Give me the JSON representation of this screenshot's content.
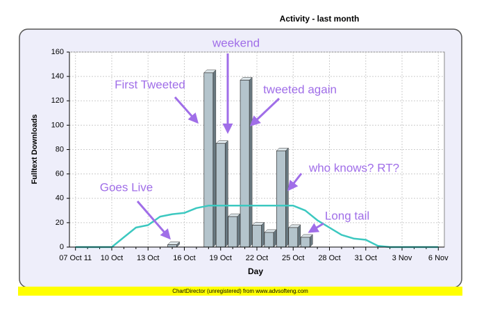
{
  "chart_data": {
    "type": "bar",
    "title": "Activity - last month",
    "ylabel": "Fulltext Downloads",
    "xlabel": "Day",
    "footer": "ChartDirector (unregistered) from www.advsofteng.com",
    "categories": [
      "07 Oct 11",
      null,
      null,
      "10 Oct",
      null,
      null,
      "13 Oct",
      null,
      null,
      "16 Oct",
      null,
      null,
      "19 Oct",
      null,
      null,
      "22 Oct",
      null,
      null,
      "25 Oct",
      null,
      null,
      "28 Oct",
      null,
      null,
      "31 Oct",
      null,
      null,
      "3 Nov",
      null,
      null,
      "6 Nov"
    ],
    "series": [
      {
        "type": "bar",
        "color": "#b4c4cc",
        "values": [
          0,
          0,
          0,
          0,
          0,
          0,
          0,
          0,
          2,
          0,
          0,
          143,
          85,
          25,
          137,
          18,
          12,
          79,
          16,
          8,
          0,
          0,
          0,
          0,
          0,
          0,
          0,
          0,
          0,
          0,
          0
        ]
      },
      {
        "type": "line",
        "color": "#3cc8c0",
        "values": [
          0,
          0,
          0,
          0,
          8,
          16,
          18,
          25,
          27,
          28,
          32,
          34,
          34,
          34,
          34,
          34,
          34,
          34,
          34,
          30,
          22,
          16,
          10,
          7,
          6,
          1,
          0,
          0,
          0,
          0,
          0
        ]
      }
    ],
    "ylim": [
      0,
      160
    ],
    "yticks": [
      0,
      20,
      40,
      60,
      80,
      100,
      120,
      140,
      160
    ],
    "grid": true,
    "annotations": [
      "weekend",
      "First Tweeted",
      "tweeted again",
      "who knows? RT?",
      "Goes Live",
      "Long tail"
    ]
  }
}
